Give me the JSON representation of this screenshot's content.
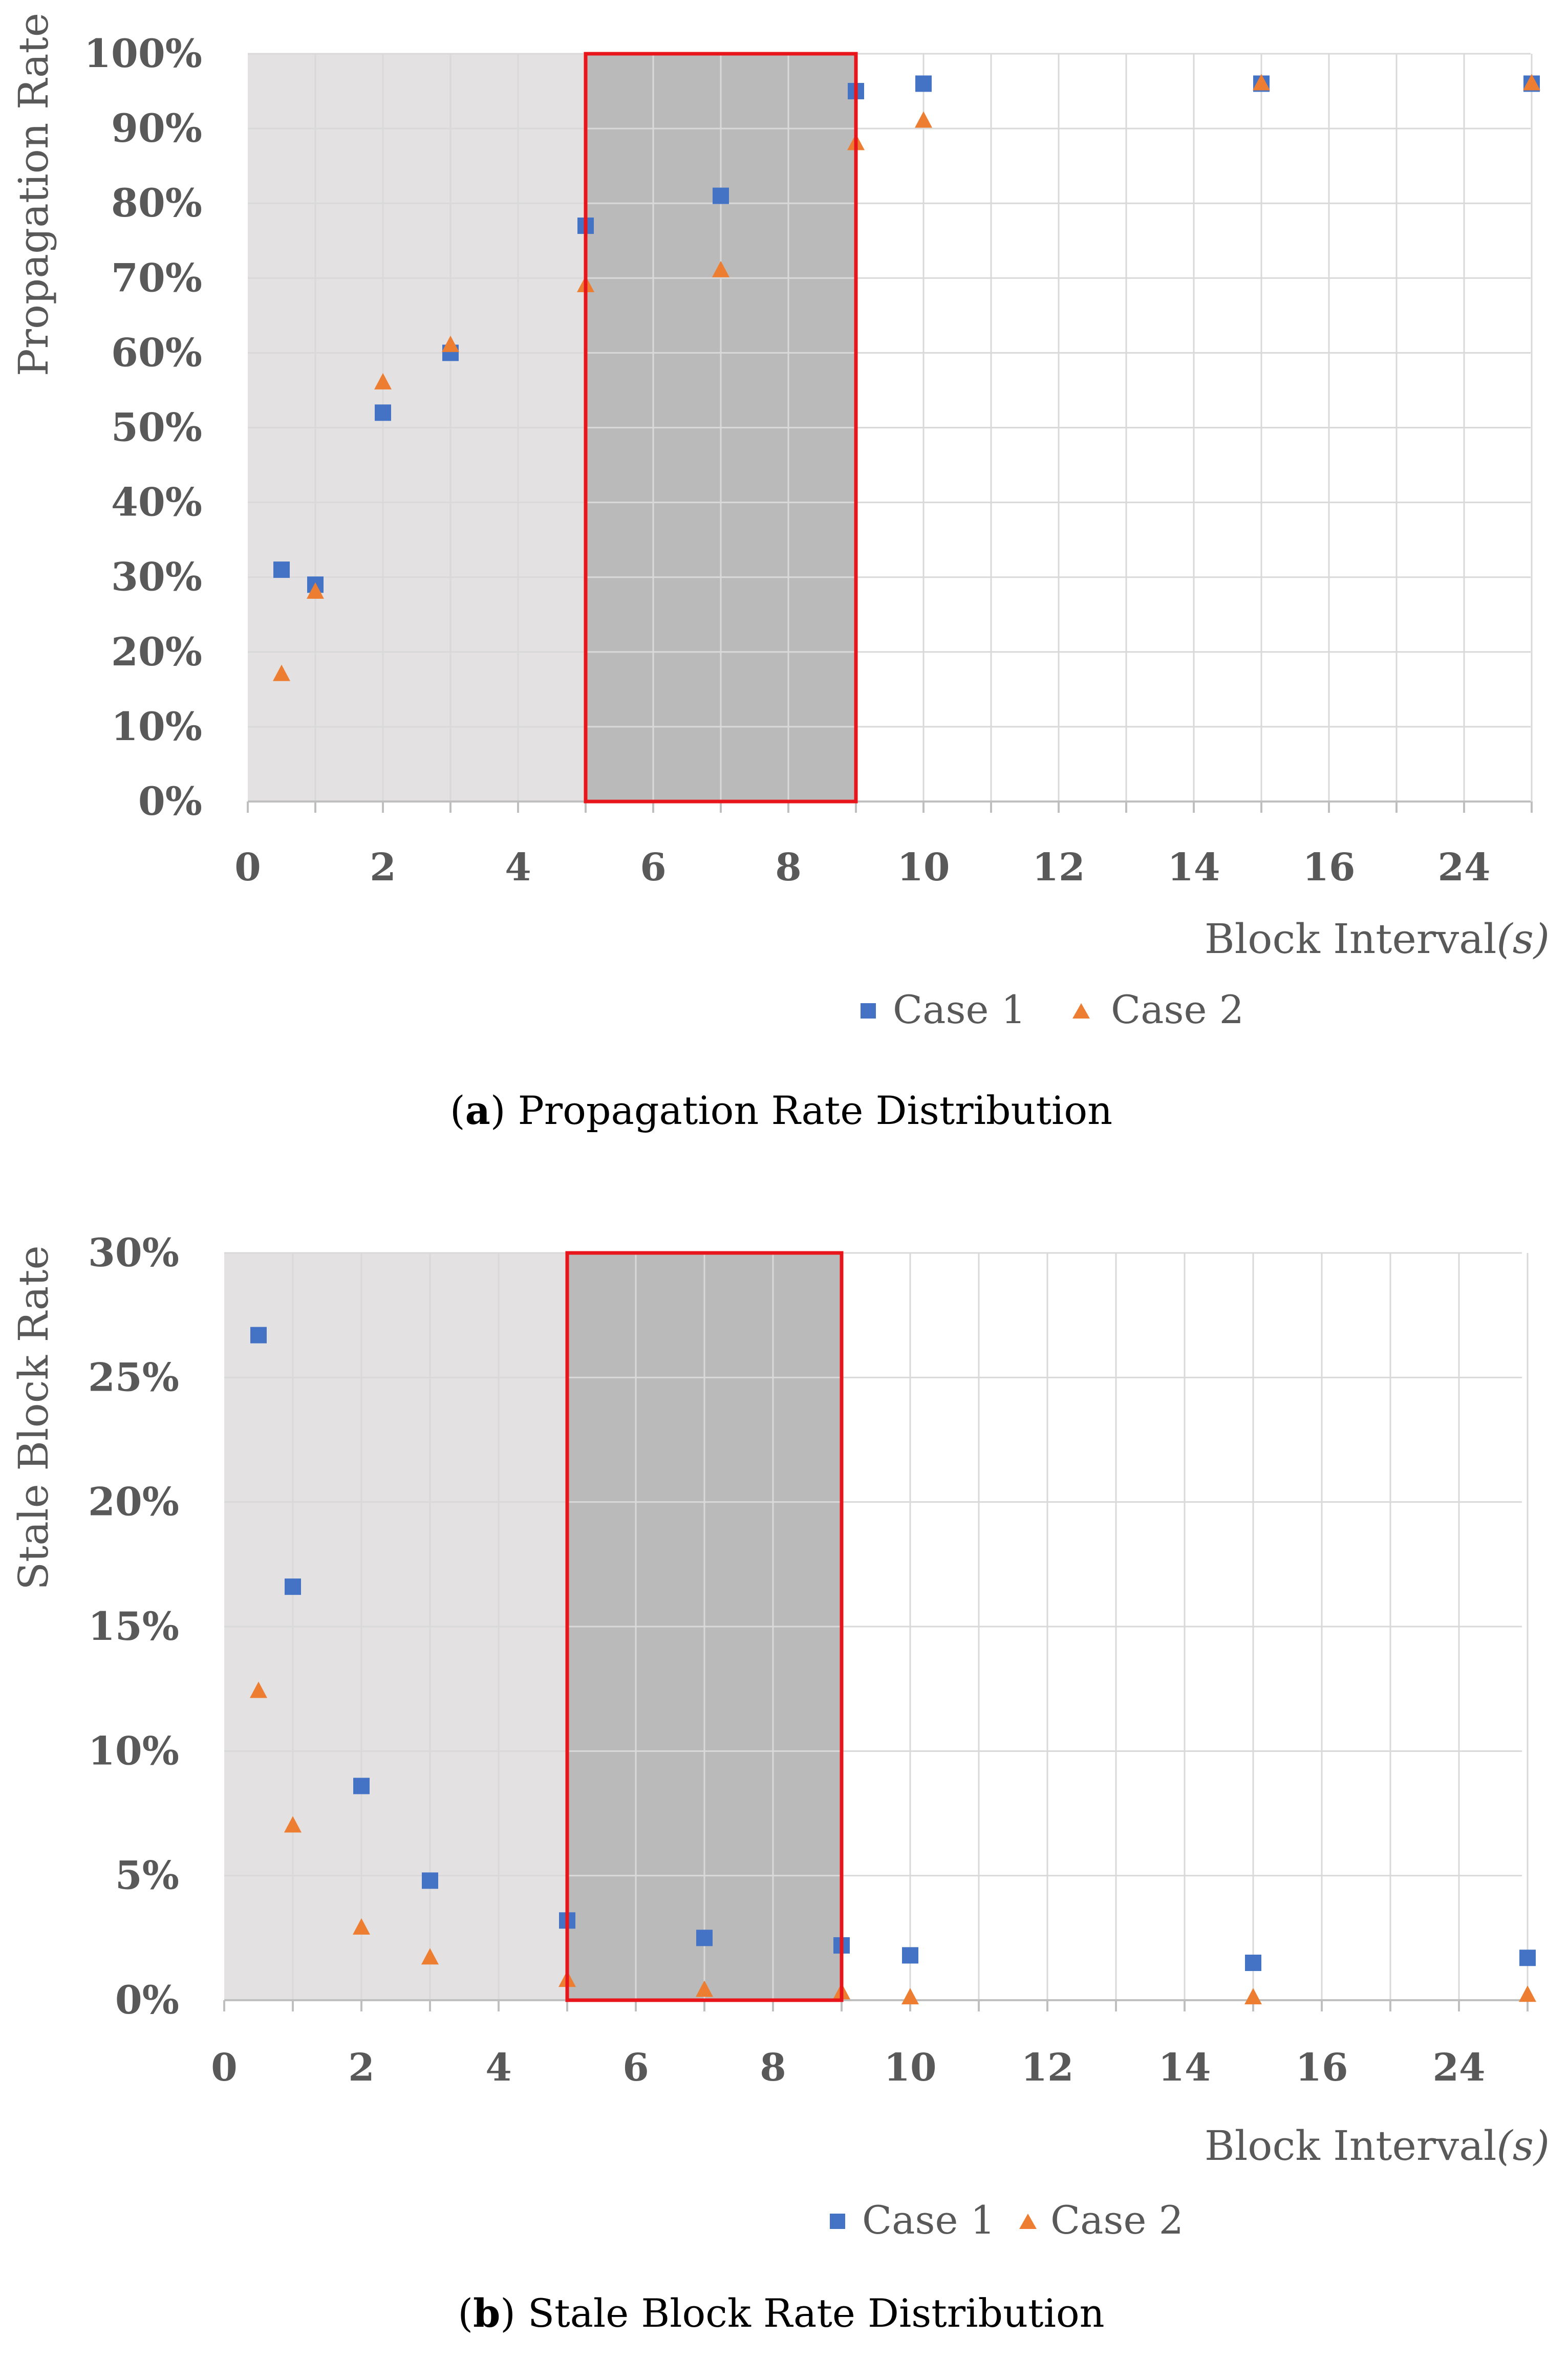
{
  "chart_data": [
    {
      "id": "a",
      "type": "scatter",
      "caption_letter": "a",
      "caption_text": ") Propagation Rate Distribution",
      "caption_open": "(",
      "xlabel_main": "Block Interval",
      "xlabel_unit": "(s)",
      "ylabel": "Propagation Rate",
      "x_tick_labels": [
        "0",
        "2",
        "4",
        "6",
        "8",
        "10",
        "12",
        "14",
        "16",
        "24"
      ],
      "y_tick_labels": [
        "0%",
        "10%",
        "20%",
        "30%",
        "40%",
        "50%",
        "60%",
        "70%",
        "80%",
        "90%",
        "100%"
      ],
      "ylim": [
        0,
        100
      ],
      "highlight_range": [
        5,
        9
      ],
      "legend": [
        "Case 1",
        "Case 2"
      ],
      "series": [
        {
          "name": "Case 1",
          "marker": "square",
          "x": [
            0.5,
            1,
            2,
            3,
            5,
            7,
            9,
            10,
            15,
            25
          ],
          "y": [
            31,
            29,
            52,
            60,
            77,
            81,
            95,
            96,
            96,
            96
          ]
        },
        {
          "name": "Case 2",
          "marker": "triangle",
          "x": [
            0.5,
            1,
            2,
            3,
            5,
            7,
            9,
            10,
            15,
            25
          ],
          "y": [
            17,
            28,
            56,
            61,
            69,
            71,
            88,
            91,
            96,
            96
          ]
        }
      ]
    },
    {
      "id": "b",
      "type": "scatter",
      "caption_letter": "b",
      "caption_text": ") Stale Block Rate Distribution",
      "caption_open": "(",
      "xlabel_main": "Block Interval",
      "xlabel_unit": "(s)",
      "ylabel": "Stale Block Rate",
      "x_tick_labels": [
        "0",
        "2",
        "4",
        "6",
        "8",
        "10",
        "12",
        "14",
        "16",
        "24"
      ],
      "y_tick_labels": [
        "0%",
        "5%",
        "10%",
        "15%",
        "20%",
        "25%",
        "30%"
      ],
      "ylim": [
        0,
        30
      ],
      "highlight_range": [
        5,
        9
      ],
      "legend": [
        "Case 1",
        "Case 2"
      ],
      "series": [
        {
          "name": "Case 1",
          "marker": "square",
          "x": [
            0.5,
            1,
            2,
            3,
            5,
            7,
            9,
            10,
            15,
            25
          ],
          "y": [
            26.7,
            16.6,
            8.6,
            4.8,
            3.2,
            2.5,
            2.2,
            1.8,
            1.5,
            1.7
          ]
        },
        {
          "name": "Case 2",
          "marker": "triangle",
          "x": [
            0.5,
            1,
            2,
            3,
            5,
            7,
            9,
            10,
            15,
            25
          ],
          "y": [
            12.4,
            7.0,
            2.9,
            1.7,
            0.8,
            0.4,
            0.3,
            0.1,
            0.1,
            0.2
          ]
        }
      ]
    }
  ],
  "colors": {
    "case1": "#4472C4",
    "case2": "#ED7D31",
    "shade_light": "#E3E1E2",
    "shade_dark": "#BABABA",
    "highlight_border": "#E8161B",
    "grid": "#D9D9D9"
  }
}
